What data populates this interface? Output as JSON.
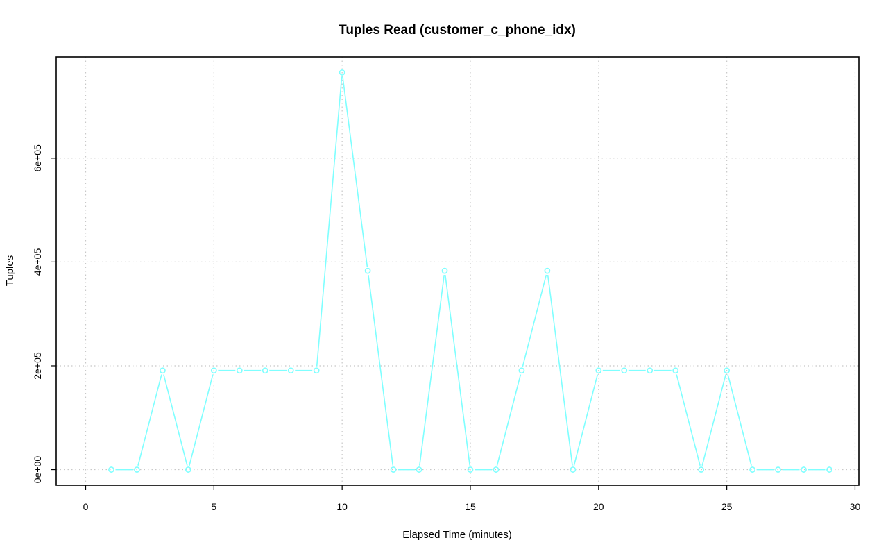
{
  "chart_data": {
    "type": "line",
    "title": "Tuples Read (customer_c_phone_idx)",
    "xlabel": "Elapsed Time (minutes)",
    "ylabel": "Tuples",
    "xlim": [
      -1.15,
      30.15
    ],
    "ylim": [
      -30000,
      795000
    ],
    "xticks": [
      0,
      5,
      10,
      15,
      20,
      25,
      30
    ],
    "xtick_labels": [
      "0",
      "5",
      "10",
      "15",
      "20",
      "25",
      "30"
    ],
    "yticks": [
      0,
      200000,
      400000,
      600000
    ],
    "ytick_labels": [
      "0e+00",
      "2e+05",
      "4e+05",
      "6e+05"
    ],
    "grid": true,
    "series_color": "#7fffff",
    "x": [
      1,
      2,
      3,
      4,
      5,
      6,
      7,
      8,
      9,
      10,
      11,
      12,
      13,
      14,
      15,
      16,
      17,
      18,
      19,
      20,
      21,
      22,
      23,
      24,
      25,
      26,
      27,
      28,
      29
    ],
    "y": [
      0,
      0,
      191000,
      0,
      191000,
      191000,
      191000,
      191000,
      191000,
      765000,
      383000,
      0,
      0,
      383000,
      0,
      0,
      191000,
      383000,
      0,
      191000,
      191000,
      191000,
      191000,
      0,
      191000,
      0,
      0,
      0,
      0
    ]
  }
}
